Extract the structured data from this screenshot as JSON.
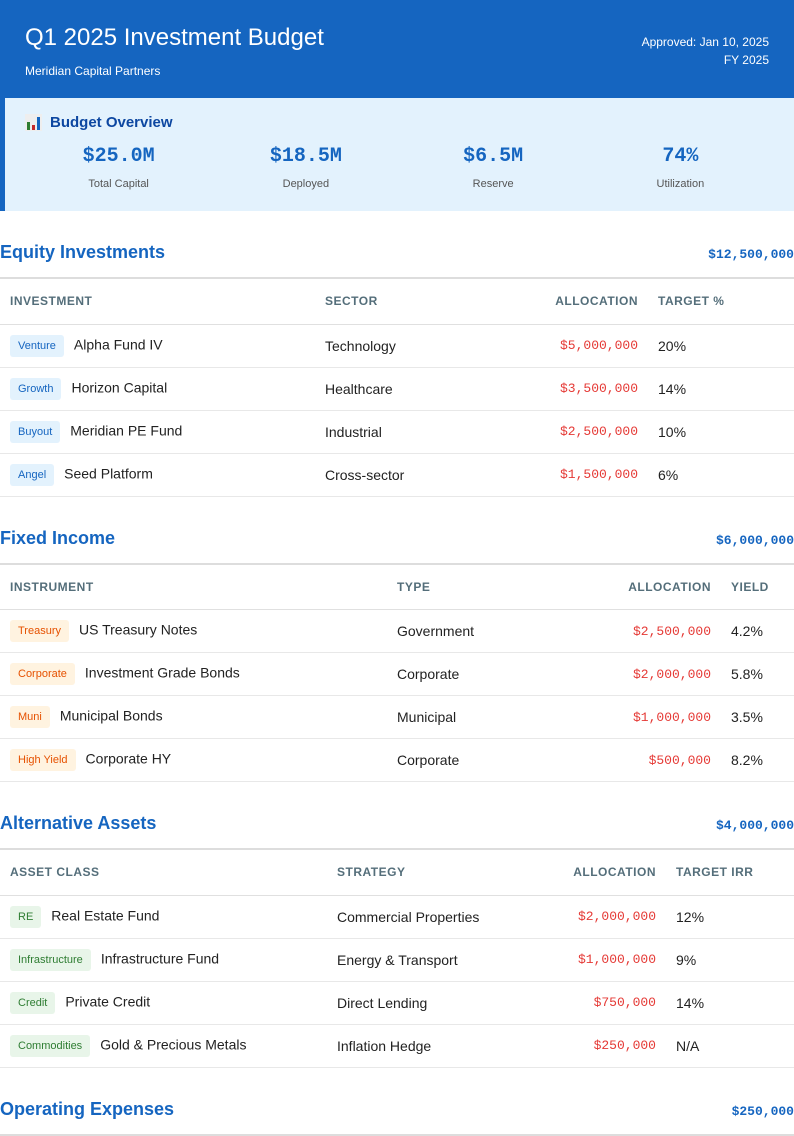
{
  "header": {
    "title": "Q1 2025 Investment Budget",
    "subtitle": "Meridian Capital Partners",
    "approved": "Approved: Jan 10, 2025",
    "fy": "FY 2025"
  },
  "overview": {
    "title": "Budget Overview",
    "icon": "bar-chart-icon",
    "stats": [
      {
        "value": "$25.0M",
        "label": "Total Capital"
      },
      {
        "value": "$18.5M",
        "label": "Deployed"
      },
      {
        "value": "$6.5M",
        "label": "Reserve"
      },
      {
        "value": "74%",
        "label": "Utilization"
      }
    ]
  },
  "colors": {
    "primary": "#1565c0",
    "allocation": "#e53935"
  },
  "sections": [
    {
      "title": "Equity Investments",
      "total": "$12,500,000",
      "headers": [
        "INVESTMENT",
        "SECTOR",
        "ALLOCATION",
        "TARGET %"
      ],
      "rows": [
        {
          "badge": "Venture",
          "name": "Alpha Fund IV",
          "c2": "Technology",
          "alloc": "$5,000,000",
          "c4": "20%"
        },
        {
          "badge": "Growth",
          "name": "Horizon Capital",
          "c2": "Healthcare",
          "alloc": "$3,500,000",
          "c4": "14%"
        },
        {
          "badge": "Buyout",
          "name": "Meridian PE Fund",
          "c2": "Industrial",
          "alloc": "$2,500,000",
          "c4": "10%"
        },
        {
          "badge": "Angel",
          "name": "Seed Platform",
          "c2": "Cross-sector",
          "alloc": "$1,500,000",
          "c4": "6%"
        }
      ]
    },
    {
      "title": "Fixed Income",
      "total": "$6,000,000",
      "headers": [
        "INSTRUMENT",
        "TYPE",
        "ALLOCATION",
        "YIELD"
      ],
      "rows": [
        {
          "badge": "Treasury",
          "name": "US Treasury Notes",
          "c2": "Government",
          "alloc": "$2,500,000",
          "c4": "4.2%"
        },
        {
          "badge": "Corporate",
          "name": "Investment Grade Bonds",
          "c2": "Corporate",
          "alloc": "$2,000,000",
          "c4": "5.8%"
        },
        {
          "badge": "Muni",
          "name": "Municipal Bonds",
          "c2": "Municipal",
          "alloc": "$1,000,000",
          "c4": "3.5%"
        },
        {
          "badge": "High Yield",
          "name": "Corporate HY",
          "c2": "Corporate",
          "alloc": "$500,000",
          "c4": "8.2%"
        }
      ]
    },
    {
      "title": "Alternative Assets",
      "total": "$4,000,000",
      "headers": [
        "ASSET CLASS",
        "STRATEGY",
        "ALLOCATION",
        "TARGET IRR"
      ],
      "rows": [
        {
          "badge": "RE",
          "name": "Real Estate Fund",
          "c2": "Commercial Properties",
          "alloc": "$2,000,000",
          "c4": "12%"
        },
        {
          "badge": "Infrastructure",
          "name": "Infrastructure Fund",
          "c2": "Energy & Transport",
          "alloc": "$1,000,000",
          "c4": "9%"
        },
        {
          "badge": "Credit",
          "name": "Private Credit",
          "c2": "Direct Lending",
          "alloc": "$750,000",
          "c4": "14%"
        },
        {
          "badge": "Commodities",
          "name": "Gold & Precious Metals",
          "c2": "Inflation Hedge",
          "alloc": "$250,000",
          "c4": "N/A"
        }
      ]
    },
    {
      "title": "Operating Expenses",
      "total": "$250,000"
    }
  ]
}
